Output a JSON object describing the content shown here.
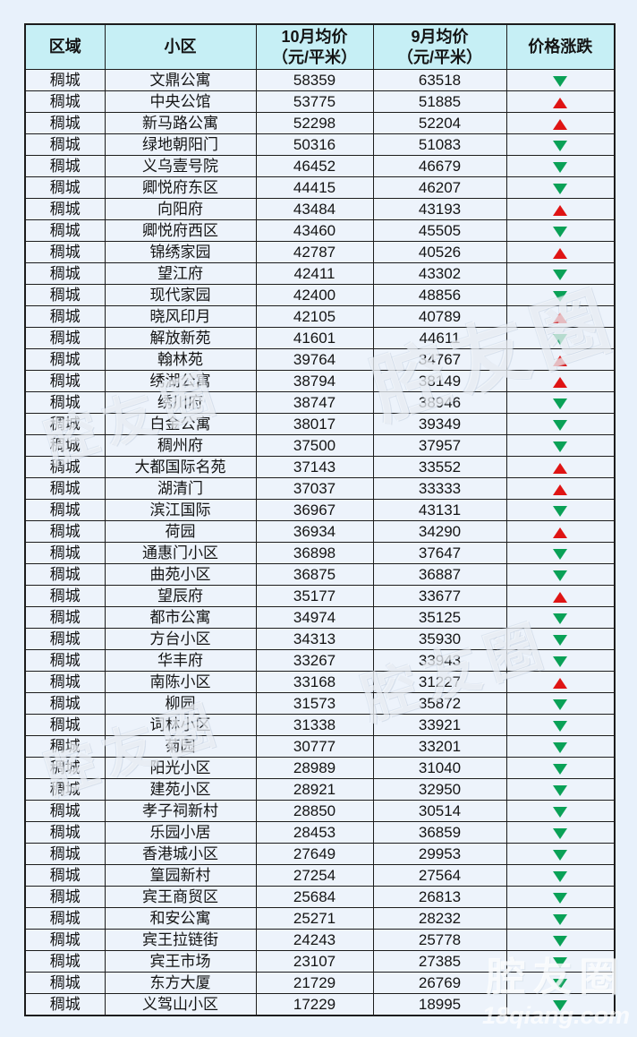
{
  "colors": {
    "page_bg": "#e8f1fb",
    "header_bg": "#c6eff5",
    "row_bg": "#edf3fb",
    "border": "#1c1c1c",
    "up_red": "#df1414",
    "down_green": "#0aa157"
  },
  "watermark": {
    "logo": "腔友圈",
    "site": "18qiang.com"
  },
  "chart_data": {
    "type": "table",
    "title": "",
    "columns": [
      "区域",
      "小区",
      "10月均价（元/平米）",
      "9月均价（元/平米）",
      "价格涨跌"
    ],
    "header_lines": [
      [
        "区域"
      ],
      [
        "小区"
      ],
      [
        "10月均价",
        "（元/平米）"
      ],
      [
        "9月均价",
        "（元/平米）"
      ],
      [
        "价格涨跌"
      ]
    ],
    "trend_legend": {
      "up": "红色上涨三角",
      "down": "绿色下跌三角"
    },
    "rows": [
      {
        "region": "稠城",
        "community": "文鼎公寓",
        "oct": 58359,
        "sep": 63518,
        "trend": "down"
      },
      {
        "region": "稠城",
        "community": "中央公馆",
        "oct": 53775,
        "sep": 51885,
        "trend": "up"
      },
      {
        "region": "稠城",
        "community": "新马路公寓",
        "oct": 52298,
        "sep": 52204,
        "trend": "up"
      },
      {
        "region": "稠城",
        "community": "绿地朝阳门",
        "oct": 50316,
        "sep": 51083,
        "trend": "down"
      },
      {
        "region": "稠城",
        "community": "义乌壹号院",
        "oct": 46452,
        "sep": 46679,
        "trend": "down"
      },
      {
        "region": "稠城",
        "community": "卿悦府东区",
        "oct": 44415,
        "sep": 46207,
        "trend": "down"
      },
      {
        "region": "稠城",
        "community": "向阳府",
        "oct": 43484,
        "sep": 43193,
        "trend": "up"
      },
      {
        "region": "稠城",
        "community": "卿悦府西区",
        "oct": 43460,
        "sep": 45505,
        "trend": "down"
      },
      {
        "region": "稠城",
        "community": "锦绣家园",
        "oct": 42787,
        "sep": 40526,
        "trend": "up"
      },
      {
        "region": "稠城",
        "community": "望江府",
        "oct": 42411,
        "sep": 43302,
        "trend": "down"
      },
      {
        "region": "稠城",
        "community": "现代家园",
        "oct": 42400,
        "sep": 48856,
        "trend": "down"
      },
      {
        "region": "稠城",
        "community": "晓风印月",
        "oct": 42105,
        "sep": 40789,
        "trend": "up"
      },
      {
        "region": "稠城",
        "community": "解放新苑",
        "oct": 41601,
        "sep": 44611,
        "trend": "down"
      },
      {
        "region": "稠城",
        "community": "翰林苑",
        "oct": 39764,
        "sep": 34767,
        "trend": "up"
      },
      {
        "region": "稠城",
        "community": "绣湖公寓",
        "oct": 38794,
        "sep": 38149,
        "trend": "up"
      },
      {
        "region": "稠城",
        "community": "绣川府",
        "oct": 38747,
        "sep": 38946,
        "trend": "down"
      },
      {
        "region": "稠城",
        "community": "白金公寓",
        "oct": 38017,
        "sep": 39349,
        "trend": "down"
      },
      {
        "region": "稠城",
        "community": "稠州府",
        "oct": 37500,
        "sep": 37957,
        "trend": "down"
      },
      {
        "region": "稠城",
        "community": "大都国际名苑",
        "oct": 37143,
        "sep": 33552,
        "trend": "up"
      },
      {
        "region": "稠城",
        "community": "湖清门",
        "oct": 37037,
        "sep": 33333,
        "trend": "up"
      },
      {
        "region": "稠城",
        "community": "滨江国际",
        "oct": 36967,
        "sep": 43131,
        "trend": "down"
      },
      {
        "region": "稠城",
        "community": "荷园",
        "oct": 36934,
        "sep": 34290,
        "trend": "up"
      },
      {
        "region": "稠城",
        "community": "通惠门小区",
        "oct": 36898,
        "sep": 37647,
        "trend": "down"
      },
      {
        "region": "稠城",
        "community": "曲苑小区",
        "oct": 36875,
        "sep": 36887,
        "trend": "down"
      },
      {
        "region": "稠城",
        "community": "望辰府",
        "oct": 35177,
        "sep": 33677,
        "trend": "up"
      },
      {
        "region": "稠城",
        "community": "都市公寓",
        "oct": 34974,
        "sep": 35125,
        "trend": "down"
      },
      {
        "region": "稠城",
        "community": "方台小区",
        "oct": 34313,
        "sep": 35930,
        "trend": "down"
      },
      {
        "region": "稠城",
        "community": "华丰府",
        "oct": 33267,
        "sep": 33943,
        "trend": "down"
      },
      {
        "region": "稠城",
        "community": "南陈小区",
        "oct": 33168,
        "sep": 31227,
        "trend": "up"
      },
      {
        "region": "稠城",
        "community": "柳园",
        "oct": 31573,
        "sep": 35872,
        "trend": "down"
      },
      {
        "region": "稠城",
        "community": "词林小区",
        "oct": 31338,
        "sep": 33921,
        "trend": "down"
      },
      {
        "region": "稠城",
        "community": "菊园",
        "oct": 30777,
        "sep": 33201,
        "trend": "down"
      },
      {
        "region": "稠城",
        "community": "阳光小区",
        "oct": 28989,
        "sep": 31040,
        "trend": "down"
      },
      {
        "region": "稠城",
        "community": "建苑小区",
        "oct": 28921,
        "sep": 32950,
        "trend": "down"
      },
      {
        "region": "稠城",
        "community": "孝子祠新村",
        "oct": 28850,
        "sep": 30514,
        "trend": "down"
      },
      {
        "region": "稠城",
        "community": "乐园小居",
        "oct": 28453,
        "sep": 36859,
        "trend": "down"
      },
      {
        "region": "稠城",
        "community": "香港城小区",
        "oct": 27649,
        "sep": 29953,
        "trend": "down"
      },
      {
        "region": "稠城",
        "community": "篁园新村",
        "oct": 27254,
        "sep": 27564,
        "trend": "down"
      },
      {
        "region": "稠城",
        "community": "宾王商贸区",
        "oct": 25684,
        "sep": 26813,
        "trend": "down"
      },
      {
        "region": "稠城",
        "community": "和安公寓",
        "oct": 25271,
        "sep": 28232,
        "trend": "down"
      },
      {
        "region": "稠城",
        "community": "宾王拉链街",
        "oct": 24243,
        "sep": 25778,
        "trend": "down"
      },
      {
        "region": "稠城",
        "community": "宾王市场",
        "oct": 23107,
        "sep": 27385,
        "trend": "down"
      },
      {
        "region": "稠城",
        "community": "东方大厦",
        "oct": 21729,
        "sep": 26769,
        "trend": "down"
      },
      {
        "region": "稠城",
        "community": "义驾山小区",
        "oct": 17229,
        "sep": 18995,
        "trend": "down"
      }
    ]
  }
}
